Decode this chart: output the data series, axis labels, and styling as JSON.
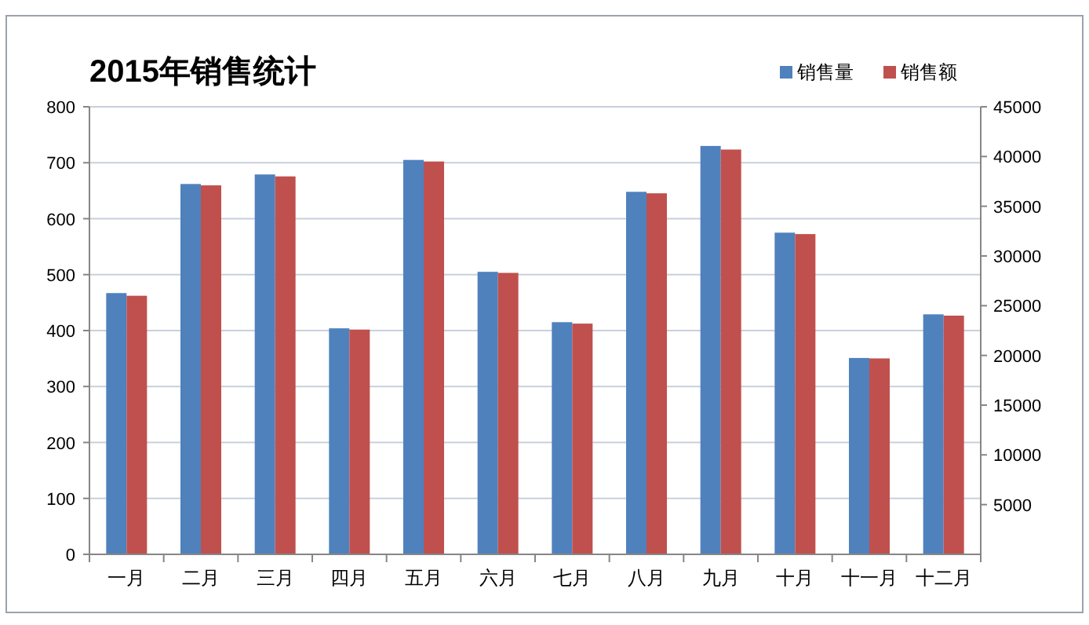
{
  "chart_data": {
    "type": "bar",
    "title": "2015年销售统计",
    "categories": [
      "一月",
      "二月",
      "三月",
      "四月",
      "五月",
      "六月",
      "七月",
      "八月",
      "九月",
      "十月",
      "十一月",
      "十二月"
    ],
    "series": [
      {
        "name": "销售量",
        "color": "#4f81bd",
        "values": [
          467,
          662,
          679,
          404,
          705,
          505,
          415,
          648,
          730,
          575,
          351,
          429
        ]
      },
      {
        "name": "销售额",
        "color": "#c0504d",
        "axis": "y2",
        "values": [
          26000,
          37100,
          38000,
          22600,
          39500,
          28300,
          23200,
          36300,
          40700,
          32200,
          19700,
          24000
        ]
      }
    ],
    "ylim": [
      0,
      800
    ],
    "yticks": [
      0,
      100,
      200,
      300,
      400,
      500,
      600,
      700,
      800
    ],
    "y2lim": [
      0,
      45000
    ],
    "y2ticks": [
      5000,
      10000,
      15000,
      20000,
      25000,
      30000,
      35000,
      40000,
      45000
    ],
    "grid": "y",
    "legend": "top right"
  }
}
